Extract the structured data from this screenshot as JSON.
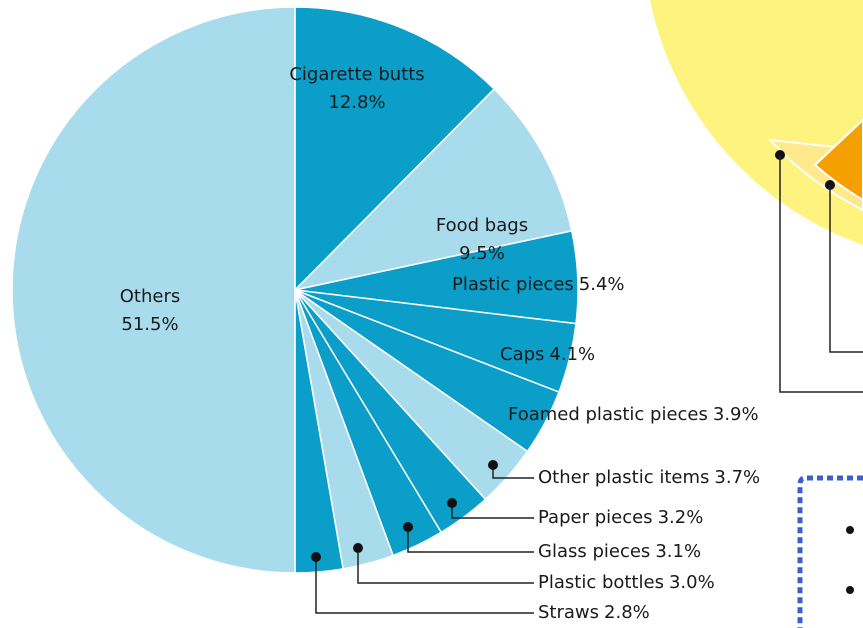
{
  "chart_data": {
    "type": "pie",
    "categories": [
      "Cigarette butts",
      "Food bags",
      "Plastic pieces",
      "Caps",
      "Foamed plastic pieces",
      "Other plastic items",
      "Paper pieces",
      "Glass pieces",
      "Plastic bottles",
      "Straws",
      "Others"
    ],
    "values": [
      12.8,
      9.5,
      5.4,
      4.1,
      3.9,
      3.7,
      3.2,
      3.1,
      3.0,
      2.8,
      51.5
    ],
    "value_labels": [
      "12.8%",
      "9.5%",
      "5.4%",
      "4.1%",
      "3.9%",
      "3.7%",
      "3.2%",
      "3.1%",
      "3.0%",
      "2.8%",
      "51.5%"
    ],
    "colors": [
      "#0a9ec8",
      "#a8dcec",
      "#0a9ec8",
      "#0a9ec8",
      "#0a9ec8",
      "#a8dcec",
      "#0a9ec8",
      "#0a9ec8",
      "#a8dcec",
      "#0a9ec8",
      "#a8dcec"
    ]
  }
}
